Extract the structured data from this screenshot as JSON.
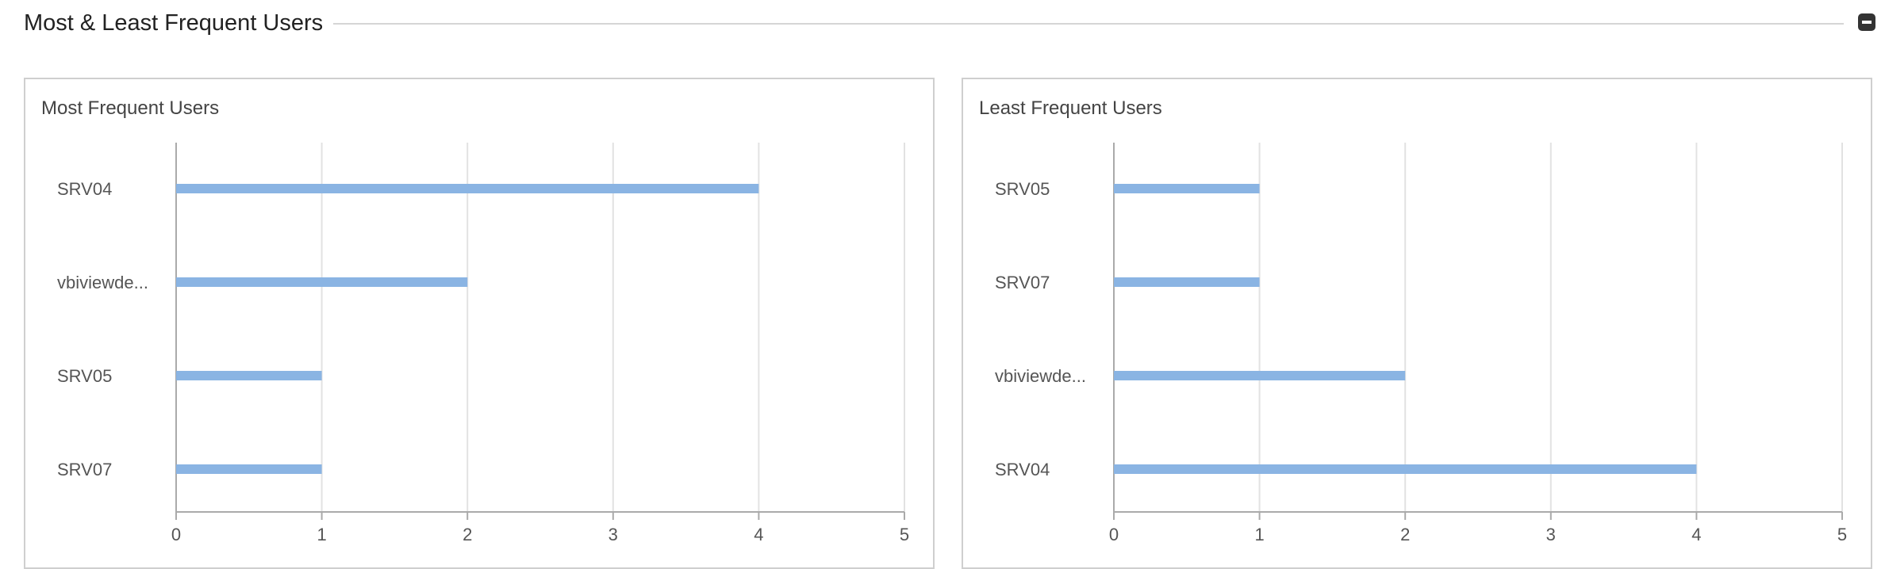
{
  "section": {
    "title": "Most & Least Frequent Users",
    "collapse_icon": "minus-square-icon"
  },
  "panels": [
    {
      "title": "Most Frequent Users"
    },
    {
      "title": "Least Frequent Users"
    }
  ],
  "colors": {
    "bar": "#8ab4e3",
    "grid": "#e2e2e2",
    "axis": "#aaaaaa",
    "text": "#555555"
  },
  "chart_data": [
    {
      "type": "bar",
      "orientation": "horizontal",
      "title": "Most Frequent Users",
      "categories": [
        "SRV04",
        "vbiviewde...",
        "SRV05",
        "SRV07"
      ],
      "values": [
        4,
        2,
        1,
        1
      ],
      "xlim": [
        0,
        5
      ],
      "x_ticks": [
        "0",
        "1",
        "2",
        "3",
        "4",
        "5"
      ],
      "grid": true
    },
    {
      "type": "bar",
      "orientation": "horizontal",
      "title": "Least Frequent Users",
      "categories": [
        "SRV05",
        "SRV07",
        "vbiviewde...",
        "SRV04"
      ],
      "values": [
        1,
        1,
        2,
        4
      ],
      "xlim": [
        0,
        5
      ],
      "x_ticks": [
        "0",
        "1",
        "2",
        "3",
        "4",
        "5"
      ],
      "grid": true
    }
  ]
}
